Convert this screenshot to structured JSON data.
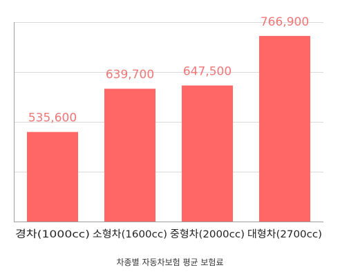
{
  "chart_data": {
    "type": "bar",
    "categories": [
      "경차(1000cc)",
      "소형차(1600cc)",
      "중형차(2000cc)",
      "대형차(2700cc)"
    ],
    "values": [
      535600,
      639700,
      647500,
      766900
    ],
    "value_labels": [
      "535,600",
      "639,700",
      "647,500",
      "766,900"
    ],
    "caption": "차종별 자동차보험 평균 보험료",
    "ylim": [
      320000,
      800000
    ],
    "y_grid_step": 120000,
    "grid": true,
    "y_tick_labels_visible": false,
    "bar_color": "#ff6666",
    "value_label_color": "#ee7777"
  }
}
